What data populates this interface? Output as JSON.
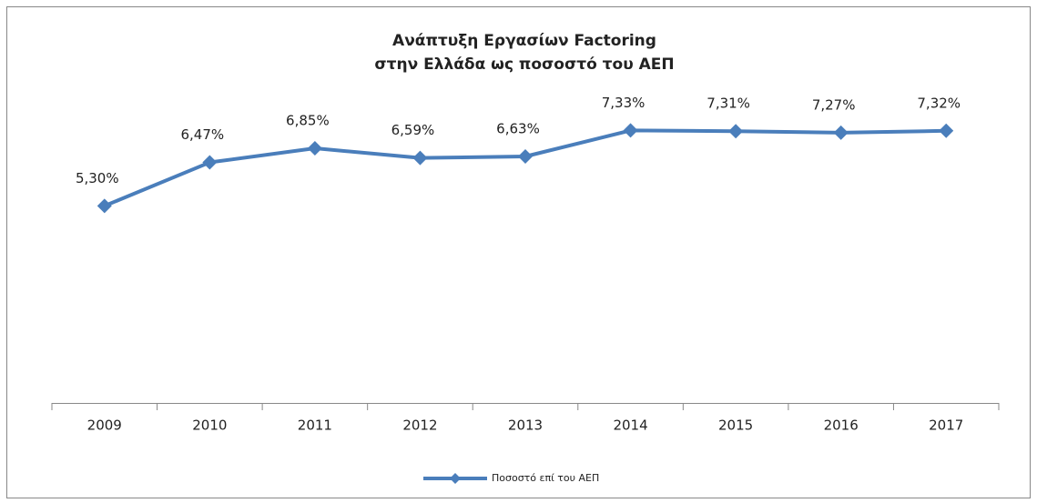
{
  "chart_data": {
    "type": "line",
    "title": [
      "Ανάπτυξη Εργασίων Factoring",
      "στην Ελλάδα ως ποσοστό του ΑΕΠ"
    ],
    "categories": [
      "2009",
      "2010",
      "2011",
      "2012",
      "2013",
      "2014",
      "2015",
      "2016",
      "2017"
    ],
    "series": [
      {
        "name": "Ποσοστό επί του ΑΕΠ",
        "color": "#4a7ebb",
        "values": [
          5.3,
          6.47,
          6.85,
          6.59,
          6.63,
          7.33,
          7.31,
          7.27,
          7.32
        ],
        "value_labels": [
          "5,30%",
          "6,47%",
          "6,85%",
          "6,59%",
          "6,63%",
          "7,33%",
          "7,31%",
          "7,27%",
          "7,32%"
        ]
      }
    ],
    "ylim": [
      0,
      8
    ],
    "legend": "bottom"
  }
}
